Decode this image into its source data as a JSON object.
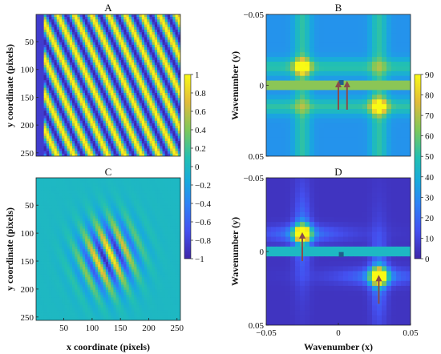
{
  "chart_data": [
    {
      "type": "heatmap",
      "title": "A",
      "ylabel": "y coordinate (pixels)",
      "xlim": [
        1,
        256
      ],
      "ylim": [
        1,
        256
      ],
      "yticks": [
        "50",
        "100",
        "150",
        "200",
        "250"
      ],
      "content": "diagonal sinusoidal stripes, values from -1 to 1"
    },
    {
      "type": "heatmap",
      "title": "B",
      "ylabel": "Wavenumber (y)",
      "xlim": [
        -0.05,
        0.05
      ],
      "ylim": [
        -0.05,
        0.05
      ],
      "yticks": [
        "−0.05",
        "0",
        "0.05"
      ],
      "peaks": [
        {
          "kx": -0.025,
          "ky": -0.013
        },
        {
          "kx": 0.028,
          "ky": 0.015
        }
      ],
      "arrows": [
        {
          "kx": 0.0,
          "ky": -0.002
        },
        {
          "kx": 0.006,
          "ky": -0.002
        }
      ]
    },
    {
      "type": "heatmap",
      "title": "C",
      "xlabel": "x coordinate (pixels)",
      "ylabel": "y coordinate (pixels)",
      "xlim": [
        1,
        256
      ],
      "ylim": [
        1,
        256
      ],
      "xticks": [
        "50",
        "100",
        "150",
        "200",
        "250"
      ],
      "yticks": [
        "50",
        "100",
        "150",
        "200",
        "250"
      ],
      "content": "windowed diagonal stripes concentrated in the image center"
    },
    {
      "type": "heatmap",
      "title": "D",
      "xlabel": "Wavenumber (x)",
      "ylabel": "Wavenumber (y)",
      "xlim": [
        -0.05,
        0.05
      ],
      "ylim": [
        -0.05,
        0.05
      ],
      "xticks": [
        "−0.05",
        "0",
        "0.05"
      ],
      "yticks": [
        "−0.05",
        "0",
        "0.05"
      ],
      "peaks": [
        {
          "kx": -0.025,
          "ky": -0.012
        },
        {
          "kx": 0.028,
          "ky": 0.017
        }
      ],
      "arrows": [
        {
          "kx": -0.025,
          "ky": -0.012
        },
        {
          "kx": 0.028,
          "ky": 0.017
        }
      ]
    }
  ],
  "colorbars": [
    {
      "min": -1,
      "max": 1,
      "ticks": [
        "1",
        "0.8",
        "0.6",
        "0.4",
        "0.2",
        "0",
        "−0.2",
        "−0.4",
        "−0.6",
        "−0.8",
        "−1"
      ]
    },
    {
      "min": 0,
      "max": 90,
      "ticks": [
        "90",
        "80",
        "70",
        "60",
        "50",
        "40",
        "30",
        "20",
        "10",
        "0"
      ]
    }
  ],
  "colors": {
    "arrow": "#8a4b4b",
    "marker": "#1f5f8b"
  }
}
